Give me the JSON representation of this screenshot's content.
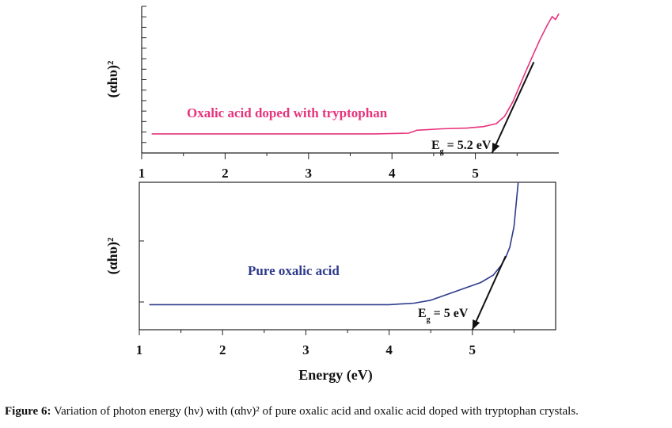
{
  "chart_data": [
    {
      "type": "line",
      "ylabel": "(αhυ)²",
      "xlabel": "",
      "xlim": [
        1,
        6
      ],
      "ylim": [
        0,
        1
      ],
      "x_ticks": [
        "1",
        "2",
        "3",
        "4",
        "5"
      ],
      "grid": false,
      "series": [
        {
          "name": "Oxalic acid doped with tryptophan",
          "color": "#e8337d",
          "x": [
            1.12,
            2.0,
            3.0,
            3.8,
            4.2,
            4.3,
            4.6,
            4.9,
            5.1,
            5.25,
            5.35,
            5.45,
            5.6,
            5.7,
            5.78,
            5.86,
            5.92,
            5.96,
            6.0
          ],
          "y": [
            0.13,
            0.13,
            0.13,
            0.13,
            0.135,
            0.155,
            0.165,
            0.17,
            0.18,
            0.2,
            0.25,
            0.35,
            0.55,
            0.68,
            0.78,
            0.87,
            0.93,
            0.91,
            0.95
          ]
        }
      ],
      "annotations": [
        {
          "text": "E = 5.2 eV",
          "subscript": "g",
          "tangent_from": [
            5.7,
            0.62
          ],
          "tangent_to": [
            5.2,
            0.0
          ]
        }
      ]
    },
    {
      "type": "line",
      "ylabel": "(αhυ)²",
      "xlabel": "Energy (eV)",
      "xlim": [
        1,
        6
      ],
      "ylim": [
        0,
        1
      ],
      "x_ticks": [
        "1",
        "2",
        "3",
        "4",
        "5"
      ],
      "grid": false,
      "series": [
        {
          "name": "Pure oxalic acid",
          "color": "#2e3a8c",
          "x": [
            1.12,
            2.0,
            3.0,
            4.0,
            4.3,
            4.5,
            4.7,
            4.9,
            5.1,
            5.25,
            5.35,
            5.4,
            5.45,
            5.5,
            5.55
          ],
          "y": [
            0.17,
            0.17,
            0.17,
            0.17,
            0.18,
            0.2,
            0.24,
            0.28,
            0.32,
            0.37,
            0.44,
            0.49,
            0.56,
            0.7,
            1.0
          ]
        }
      ],
      "annotations": [
        {
          "text": "E = 5 eV",
          "subscript": "g",
          "tangent_from": [
            5.4,
            0.5
          ],
          "tangent_to": [
            5.0,
            0.0
          ]
        }
      ]
    }
  ],
  "caption": {
    "bold": "Figure 6:",
    "text": " Variation of photon energy (hν) with (αhν)² of pure oxalic acid and oxalic acid doped with tryptophan crystals."
  }
}
